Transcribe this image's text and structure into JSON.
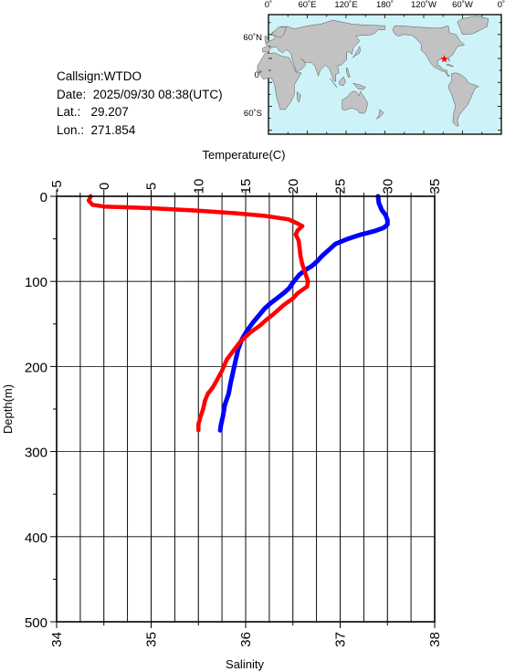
{
  "info": {
    "callsign": "Callsign:WTDO",
    "date": "Date:  2025/09/30 08:38(UTC)",
    "lat": "Lat.:   29.207",
    "lon": "Lon.:  271.854"
  },
  "map": {
    "top_labels": [
      "0˚",
      "60˚E",
      "120˚E",
      "180˚",
      "120˚W",
      "60˚W",
      "0˚"
    ],
    "left_labels": [
      "60˚N",
      "0˚",
      "60˚S"
    ],
    "ocean_color": "#cdf3f8",
    "land_color": "#c2c2c2",
    "marker": {
      "lat": 29.207,
      "lon": 271.854,
      "color": "#ff0000"
    }
  },
  "chart_data": {
    "type": "line",
    "xlabel_top": "Temperature(C)",
    "xlabel_bottom": "Salinity",
    "ylabel": "Depth(m)",
    "temp_range": [
      -5,
      35
    ],
    "temp_ticks": [
      "-5",
      "0",
      "5",
      "10",
      "15",
      "20",
      "25",
      "30",
      "35"
    ],
    "salinity_range": [
      34,
      38
    ],
    "salinity_ticks": [
      "34",
      "35",
      "36",
      "37",
      "38"
    ],
    "depth_range": [
      0,
      500
    ],
    "depth_ticks": [
      "0",
      "100",
      "200",
      "300",
      "400",
      "500"
    ],
    "grid": true,
    "series": [
      {
        "quantity": "temperature",
        "color": "#0000ff",
        "points": [
          [
            29.0,
            0
          ],
          [
            29.1,
            8
          ],
          [
            29.4,
            16
          ],
          [
            29.8,
            22
          ],
          [
            30.0,
            28
          ],
          [
            30.0,
            33
          ],
          [
            29.6,
            37
          ],
          [
            28.6,
            41
          ],
          [
            27.2,
            45
          ],
          [
            25.8,
            50
          ],
          [
            24.5,
            56
          ],
          [
            23.8,
            63
          ],
          [
            23.1,
            70
          ],
          [
            22.6,
            76
          ],
          [
            22.0,
            82
          ],
          [
            21.4,
            86
          ],
          [
            20.7,
            92
          ],
          [
            20.1,
            100
          ],
          [
            19.6,
            108
          ],
          [
            19.0,
            114
          ],
          [
            18.3,
            120
          ],
          [
            17.6,
            126
          ],
          [
            17.0,
            132
          ],
          [
            16.4,
            140
          ],
          [
            15.8,
            148
          ],
          [
            15.2,
            157
          ],
          [
            14.6,
            168
          ],
          [
            14.2,
            180
          ],
          [
            13.9,
            195
          ],
          [
            13.7,
            205
          ],
          [
            13.4,
            220
          ],
          [
            13.2,
            232
          ],
          [
            12.8,
            245
          ],
          [
            12.6,
            258
          ],
          [
            12.4,
            268
          ],
          [
            12.3,
            275
          ]
        ]
      },
      {
        "quantity": "salinity",
        "color": "#ff0000",
        "points": [
          [
            34.36,
            0
          ],
          [
            34.34,
            5
          ],
          [
            34.38,
            10
          ],
          [
            34.5,
            12
          ],
          [
            35.0,
            14
          ],
          [
            35.5,
            17
          ],
          [
            35.9,
            20
          ],
          [
            36.2,
            23
          ],
          [
            36.45,
            27
          ],
          [
            36.55,
            32
          ],
          [
            36.6,
            35
          ],
          [
            36.55,
            40
          ],
          [
            36.53,
            45
          ],
          [
            36.56,
            52
          ],
          [
            36.57,
            60
          ],
          [
            36.58,
            70
          ],
          [
            36.6,
            80
          ],
          [
            36.63,
            90
          ],
          [
            36.66,
            100
          ],
          [
            36.65,
            106
          ],
          [
            36.55,
            114
          ],
          [
            36.5,
            120
          ],
          [
            36.4,
            128
          ],
          [
            36.3,
            138
          ],
          [
            36.22,
            145
          ],
          [
            36.15,
            152
          ],
          [
            36.05,
            160
          ],
          [
            35.95,
            170
          ],
          [
            35.88,
            180
          ],
          [
            35.8,
            192
          ],
          [
            35.75,
            205
          ],
          [
            35.7,
            215
          ],
          [
            35.65,
            225
          ],
          [
            35.6,
            232
          ],
          [
            35.57,
            240
          ],
          [
            35.55,
            250
          ],
          [
            35.52,
            260
          ],
          [
            35.5,
            268
          ],
          [
            35.5,
            275
          ]
        ]
      }
    ]
  }
}
